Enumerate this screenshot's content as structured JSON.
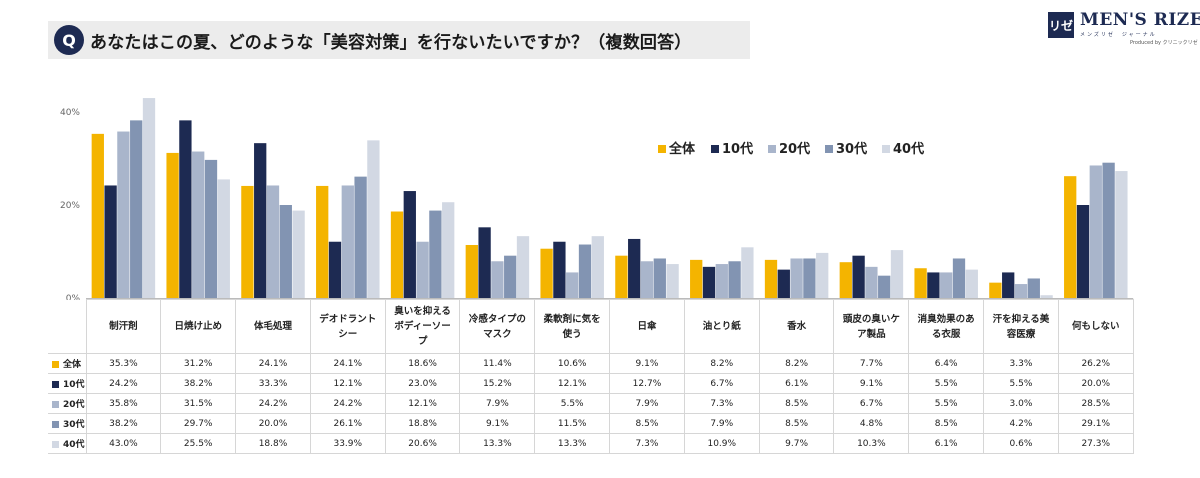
{
  "header": {
    "badge": "Q",
    "title": "あなたはこの夏、どのような「美容対策」を行ないたいですか？（複数回答）"
  },
  "logo": {
    "mark": "リゼ",
    "name": "MEN'S RIZE",
    "sub": "メンズリゼ　ジャーナル",
    "produced": "Produced by クリニックリゼ"
  },
  "colors": {
    "accent": "#1d2a52",
    "series": [
      "#f4b400",
      "#1d2a52",
      "#a9b5cb",
      "#8294b2",
      "#d2d8e3"
    ]
  },
  "chart_data": {
    "type": "bar",
    "categories": [
      "制汗剤",
      "日焼け止め",
      "体毛処理",
      "デオドラントシー",
      "臭いを抑えるボディーソープ",
      "冷感タイプのマスク",
      "柔軟剤に気を使う",
      "日傘",
      "油とり紙",
      "香水",
      "頭皮の臭いケア製品",
      "消臭効果のある衣服",
      "汗を抑える美容医療",
      "何もしない"
    ],
    "category_lines": [
      [
        "制汗剤"
      ],
      [
        "日焼け止め"
      ],
      [
        "体毛処理"
      ],
      [
        "デオドラント",
        "シー"
      ],
      [
        "臭いを抑える",
        "ボディーソー",
        "プ"
      ],
      [
        "冷感タイプの",
        "マスク"
      ],
      [
        "柔軟剤に気を",
        "使う"
      ],
      [
        "日傘"
      ],
      [
        "油とり紙"
      ],
      [
        "香水"
      ],
      [
        "頭皮の臭いケ",
        "ア製品"
      ],
      [
        "消臭効果のあ",
        "る衣服"
      ],
      [
        "汗を抑える美",
        "容医療"
      ],
      [
        "何もしない"
      ]
    ],
    "series": [
      {
        "name": "全体",
        "values": [
          35.3,
          31.2,
          24.1,
          24.1,
          18.6,
          11.4,
          10.6,
          9.1,
          8.2,
          8.2,
          7.7,
          6.4,
          3.3,
          26.2
        ]
      },
      {
        "name": "10代",
        "values": [
          24.2,
          38.2,
          33.3,
          12.1,
          23.0,
          15.2,
          12.1,
          12.7,
          6.7,
          6.1,
          9.1,
          5.5,
          5.5,
          20.0
        ]
      },
      {
        "name": "20代",
        "values": [
          35.8,
          31.5,
          24.2,
          24.2,
          12.1,
          7.9,
          5.5,
          7.9,
          7.3,
          8.5,
          6.7,
          5.5,
          3.0,
          28.5
        ]
      },
      {
        "name": "30代",
        "values": [
          38.2,
          29.7,
          20.0,
          26.1,
          18.8,
          9.1,
          11.5,
          8.5,
          7.9,
          8.5,
          4.8,
          8.5,
          4.2,
          29.1
        ]
      },
      {
        "name": "40代",
        "values": [
          43.0,
          25.5,
          18.8,
          33.9,
          20.6,
          13.3,
          13.3,
          7.3,
          10.9,
          9.7,
          10.3,
          6.1,
          0.6,
          27.3
        ]
      }
    ],
    "ylim": [
      0,
      40
    ],
    "yticks": [
      "0%",
      "20%",
      "40%"
    ],
    "grid": false,
    "legend": "top-right",
    "table": true
  }
}
